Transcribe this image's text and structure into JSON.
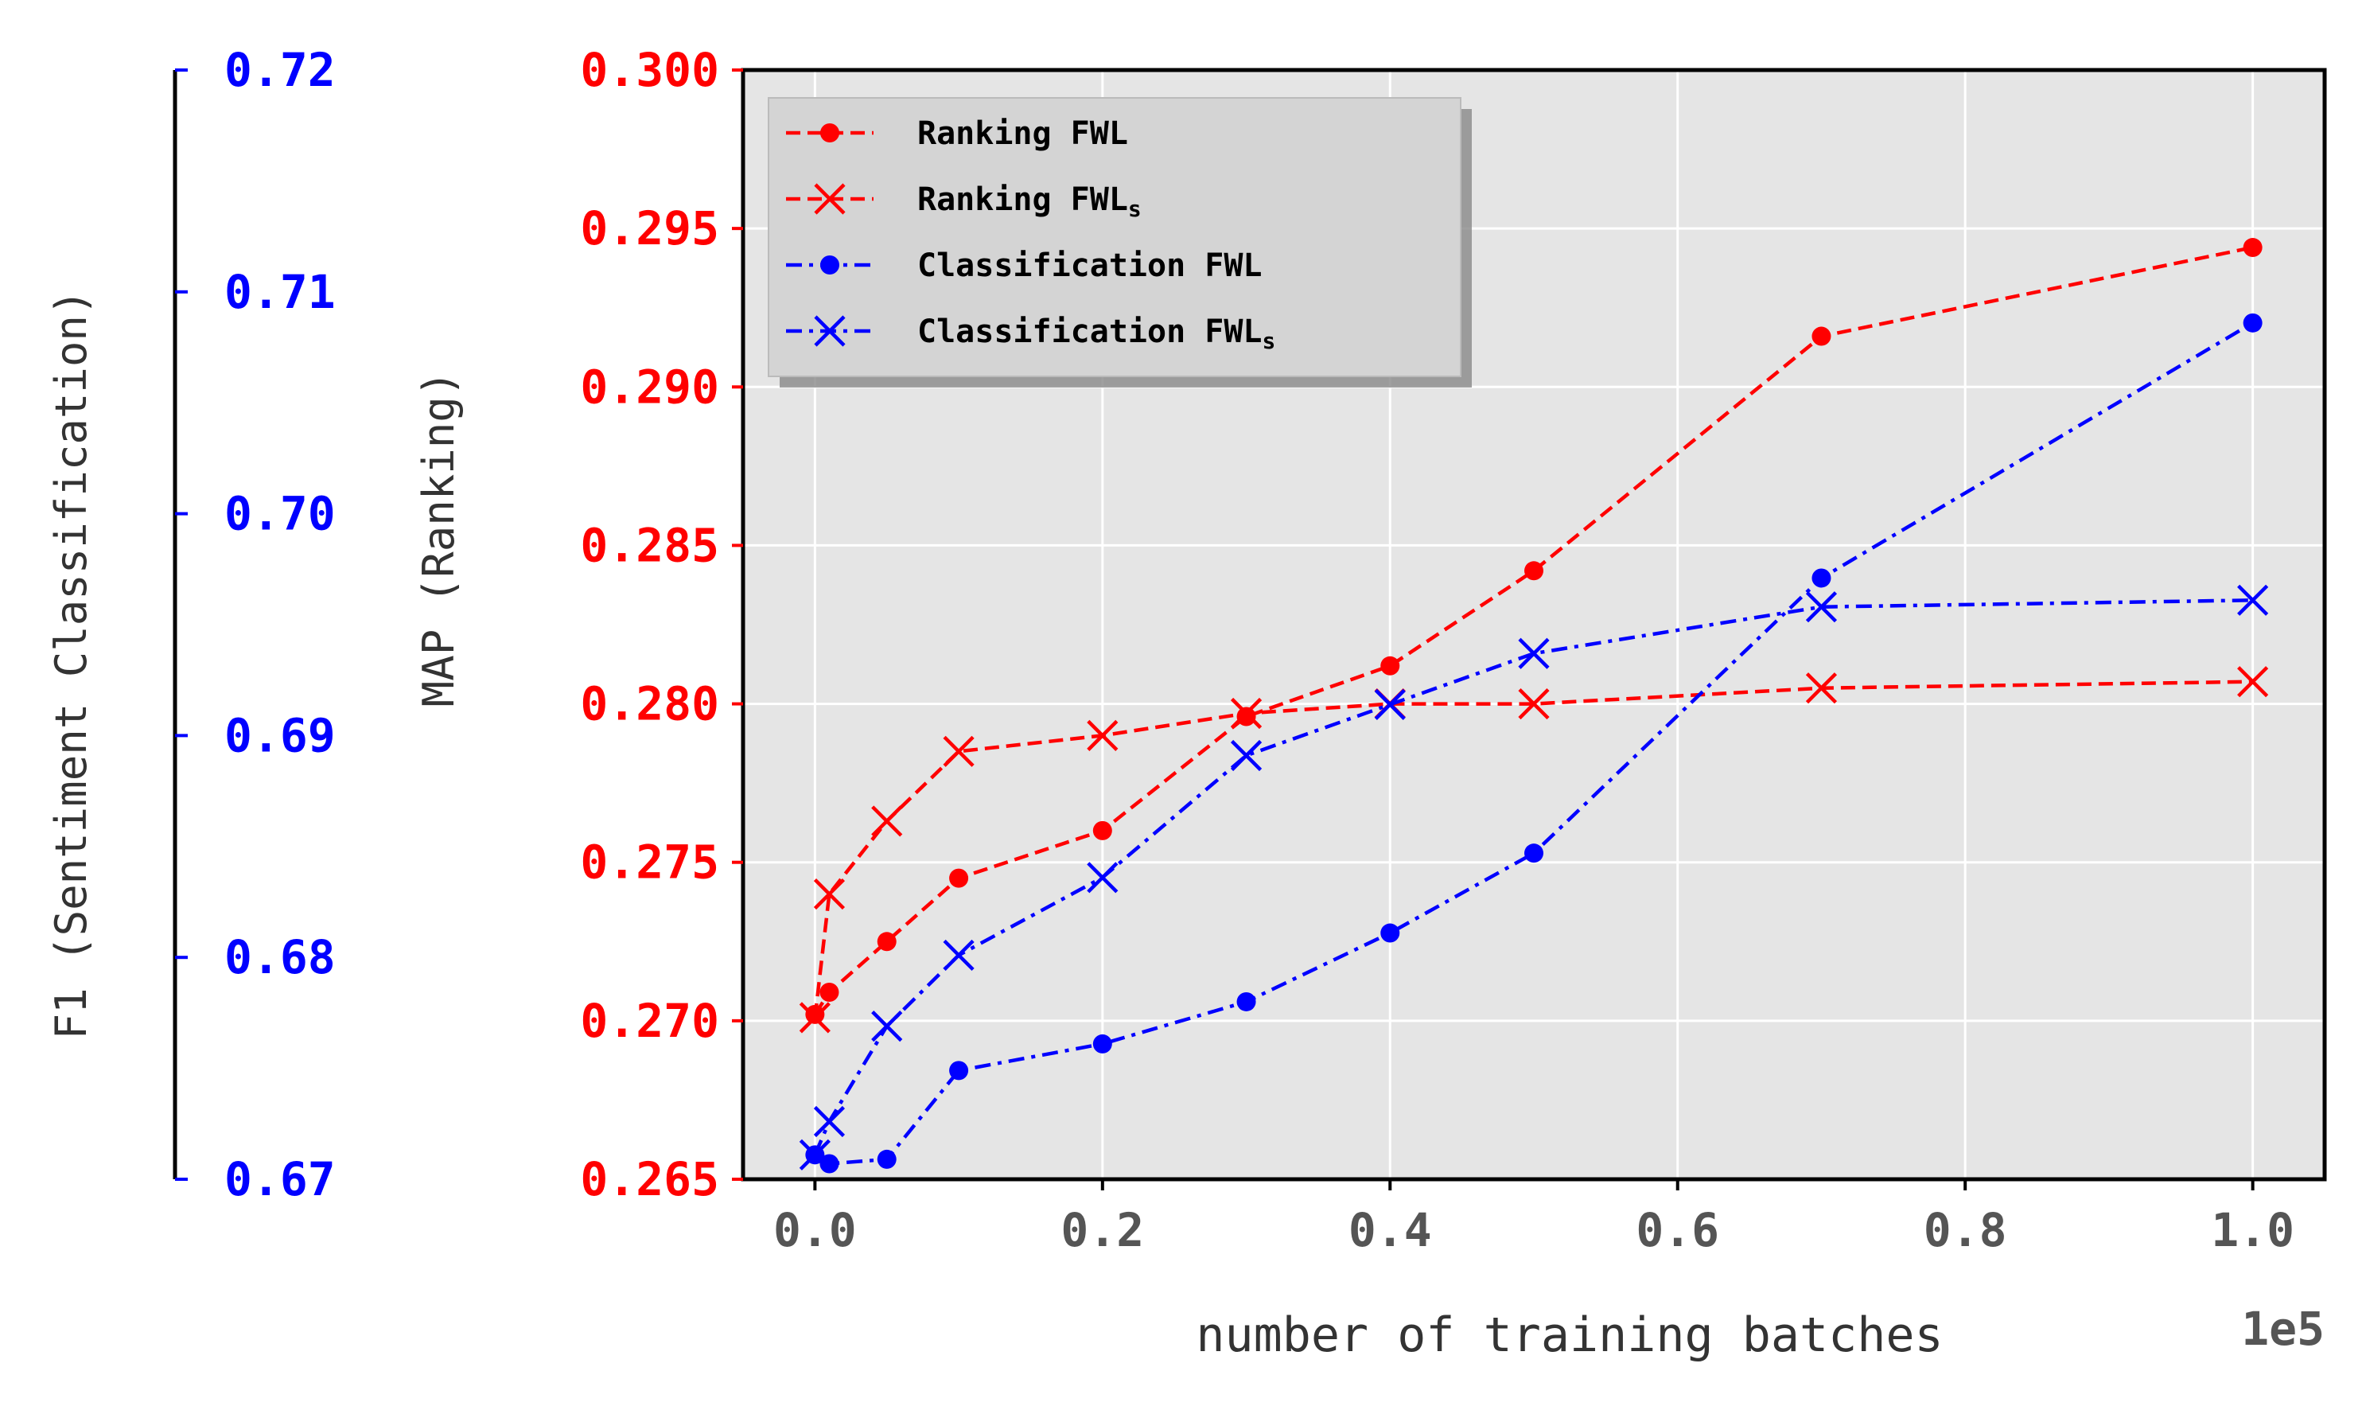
{
  "chart_data": {
    "type": "line",
    "xlabel": "number of training batches",
    "x_offset_label": "1e5",
    "ylabel_left_inner": "MAP (Ranking)",
    "ylabel_left_outer": "F1 (Sentiment Classification)",
    "x": [
      0.0,
      0.01,
      0.05,
      0.1,
      0.2,
      0.3,
      0.4,
      0.5,
      0.7,
      1.0
    ],
    "xlim": [
      -0.05,
      1.05
    ],
    "xticks": [
      "0.0",
      "0.2",
      "0.4",
      "0.6",
      "0.8",
      "1.0"
    ],
    "xtick_values": [
      0.0,
      0.2,
      0.4,
      0.6,
      0.8,
      1.0
    ],
    "ylim_ranking": [
      0.265,
      0.3
    ],
    "yticks_ranking": [
      "0.265",
      "0.270",
      "0.275",
      "0.280",
      "0.285",
      "0.290",
      "0.295",
      "0.300"
    ],
    "ytick_values_ranking": [
      0.265,
      0.27,
      0.275,
      0.28,
      0.285,
      0.29,
      0.295,
      0.3
    ],
    "ylim_classification": [
      0.67,
      0.72
    ],
    "yticks_classification": [
      "0.67",
      "0.68",
      "0.69",
      "0.70",
      "0.71",
      "0.72"
    ],
    "ytick_values_classification": [
      0.67,
      0.68,
      0.69,
      0.7,
      0.71,
      0.72
    ],
    "grid": true,
    "legend_position": "upper-left",
    "series": [
      {
        "name": "Ranking FWL",
        "legend_main": "Ranking FWL",
        "legend_sub": "",
        "axis": "ranking",
        "color": "#ff0000",
        "marker": "dot",
        "linestyle": "dashed",
        "values": [
          0.2702,
          0.2709,
          0.2725,
          0.2745,
          0.276,
          0.2796,
          0.2812,
          0.2842,
          0.2916,
          0.2944
        ]
      },
      {
        "name": "Ranking FWLs",
        "legend_main": "Ranking FWL",
        "legend_sub": "s",
        "axis": "ranking",
        "color": "#ff0000",
        "marker": "x",
        "linestyle": "dashed",
        "values": [
          0.2701,
          0.274,
          0.2763,
          0.2785,
          0.279,
          0.2797,
          0.28,
          0.28,
          0.2805,
          0.2807
        ]
      },
      {
        "name": "Classification FWL",
        "legend_main": "Classification FWL",
        "legend_sub": "",
        "axis": "classification",
        "color": "#0000ff",
        "marker": "dot",
        "linestyle": "dashdot",
        "values": [
          0.6711,
          0.6707,
          0.6709,
          0.6749,
          0.6761,
          0.678,
          0.6811,
          0.6847,
          0.6971,
          0.7086
        ]
      },
      {
        "name": "Classification FWLs",
        "legend_main": "Classification FWL",
        "legend_sub": "s",
        "axis": "classification",
        "color": "#0000ff",
        "marker": "x",
        "linestyle": "dashdot",
        "values": [
          0.6711,
          0.6726,
          0.6769,
          0.6801,
          0.6836,
          0.6891,
          0.6914,
          0.6937,
          0.6958,
          0.6961
        ]
      }
    ]
  }
}
